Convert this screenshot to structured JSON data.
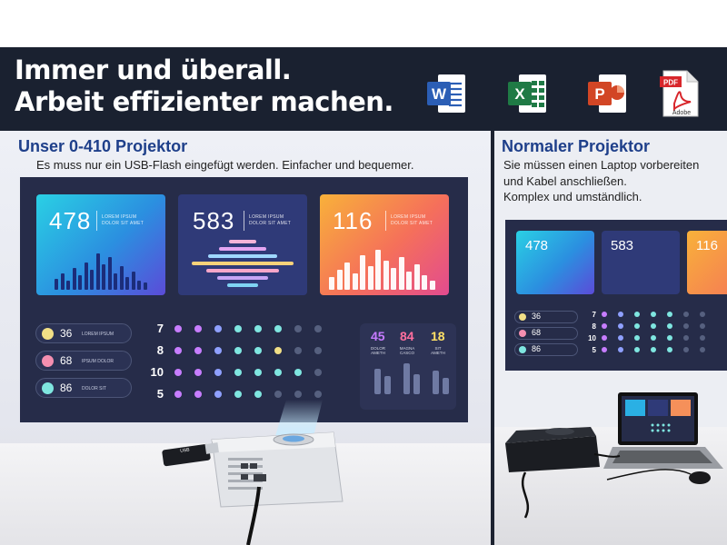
{
  "header": {
    "line1": "Immer und überall.",
    "line2": "Arbeit effizienter machen."
  },
  "apps": [
    {
      "name": "word-icon",
      "letter": "W",
      "color": "#2b5eb5"
    },
    {
      "name": "excel-icon",
      "letter": "X",
      "color": "#1f7a45"
    },
    {
      "name": "powerpoint-icon",
      "letter": "P",
      "color": "#d24625"
    },
    {
      "name": "pdf-icon",
      "letter": "PDF",
      "sublabel": "Adobe",
      "color": "#d8262b"
    }
  ],
  "left": {
    "title": "Unser 0-410 Projektor",
    "subtitle": "Es muss nur ein USB-Flash eingefügt werden. Einfacher und bequemer.",
    "usb_label": "USB"
  },
  "right": {
    "title": "Normaler Projektor",
    "line1": "Sie müssen einen Laptop vorbereiten",
    "line2": "und Kabel anschließen.",
    "line3": "Komplex und umständlich."
  },
  "dashboard": {
    "cards": [
      {
        "value": "478",
        "text1": "LOREM IPSUM",
        "text2": "DOLOR SIT AMET"
      },
      {
        "value": "583",
        "text1": "LOREM IPSUM",
        "text2": "DOLOR SIT AMET"
      },
      {
        "value": "116",
        "text1": "LOREM IPSUM",
        "text2": "DOLOR SIT AMET"
      }
    ],
    "pills": [
      {
        "value": "36",
        "label": "LOREM IPSUM",
        "color": "#f1df86"
      },
      {
        "value": "68",
        "label": "IPSUM DOLOR",
        "color": "#f58fb0"
      },
      {
        "value": "86",
        "label": "DOLOR SIT",
        "color": "#7fe6e0"
      }
    ],
    "rows": [
      "7",
      "8",
      "10",
      "5"
    ],
    "stats": [
      {
        "value": "45",
        "label1": "DOLOR",
        "label2": "AMETH",
        "color": "#c67bff"
      },
      {
        "value": "84",
        "label1": "MAGNA",
        "label2": "CASCO",
        "color": "#ff6f9e"
      },
      {
        "value": "18",
        "label1": "SIT",
        "label2": "AMETH",
        "color": "#ffe066"
      }
    ]
  },
  "mini_dashboard": {
    "cards": [
      "478",
      "583",
      "116"
    ],
    "pills": [
      "36",
      "68",
      "86"
    ],
    "rows": [
      "7",
      "8",
      "10",
      "5"
    ]
  }
}
